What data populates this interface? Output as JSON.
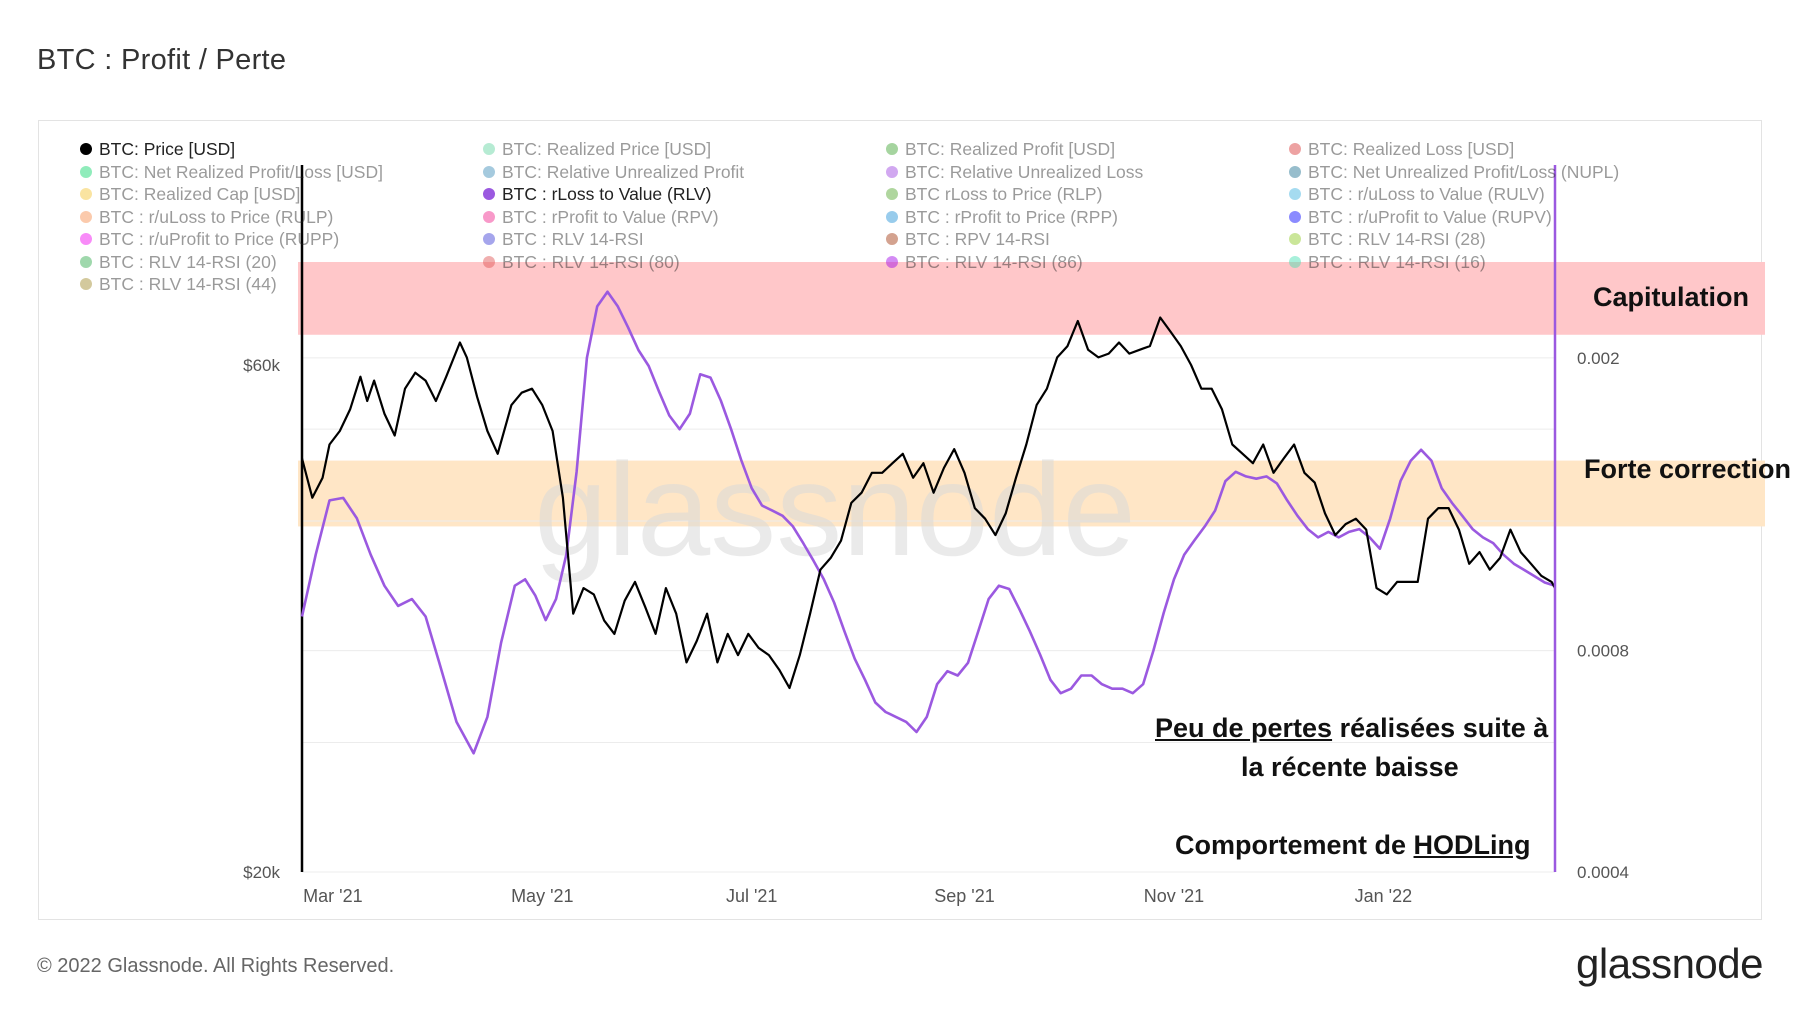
{
  "page": {
    "title": "BTC : Profit / Perte",
    "copyright": "© 2022 Glassnode. All Rights Reserved.",
    "logo_text": "glassnode",
    "watermark": "glassnode"
  },
  "colors": {
    "price_line": "#000000",
    "rlv_line": "#9b59e0",
    "capitulation_band": "#ffc7c9",
    "correction_band": "#ffe6c6",
    "grid": "#ececec",
    "axis_text": "#555555"
  },
  "legend": [
    {
      "label": "BTC: Price [USD]",
      "color": "#000000",
      "active": true
    },
    {
      "label": "BTC: Realized Price [USD]",
      "color": "#5fd3a0",
      "active": false
    },
    {
      "label": "BTC: Realized Profit [USD]",
      "color": "#3aa12c",
      "active": false
    },
    {
      "label": "BTC: Realized Loss [USD]",
      "color": "#d83232",
      "active": false
    },
    {
      "label": "BTC: Net Realized Profit/Loss [USD]",
      "color": "#0bd66b",
      "active": false
    },
    {
      "label": "BTC: Relative Unrealized Profit",
      "color": "#3a8bb8",
      "active": false
    },
    {
      "label": "BTC: Relative Unrealized Loss",
      "color": "#9b3fe0",
      "active": false
    },
    {
      "label": "BTC: Net Unrealized Profit/Loss (NUPL)",
      "color": "#1a6f8f",
      "active": false
    },
    {
      "label": "BTC: Realized Cap [USD]",
      "color": "#f4c430",
      "active": false
    },
    {
      "label": "BTC : rLoss to Value (RLV)",
      "color": "#9b59e0",
      "active": true
    },
    {
      "label": "BTC rLoss to Price (RLP)",
      "color": "#4fa52b",
      "active": false
    },
    {
      "label": "BTC : r/uLoss to Value (RULV)",
      "color": "#3ab0e0",
      "active": false
    },
    {
      "label": "BTC : r/uLoss to Price (RULP)",
      "color": "#f78b4a",
      "active": false
    },
    {
      "label": "BTC : rProfit to Value (RPV)",
      "color": "#f0208a",
      "active": false
    },
    {
      "label": "BTC : rProfit to Price (RPP)",
      "color": "#1d8fd6",
      "active": false
    },
    {
      "label": "BTC : r/uProfit to Value (RUPV)",
      "color": "#0000ff",
      "active": false
    },
    {
      "label": "BTC : r/uProfit to Price (RUPP)",
      "color": "#f000f0",
      "active": false
    },
    {
      "label": "BTC : RLV 14-RSI",
      "color": "#3a3ad6",
      "active": false
    },
    {
      "label": "BTC : RPV 14-RSI",
      "color": "#a0320a",
      "active": false
    },
    {
      "label": "BTC : RLV 14-RSI (28)",
      "color": "#8cc820",
      "active": false
    },
    {
      "label": "BTC : RLV 14-RSI (20)",
      "color": "#2caa4a",
      "active": false
    },
    {
      "label": "BTC : RLV 14-RSI (80)",
      "color": "#e05050",
      "active": false
    },
    {
      "label": "BTC : RLV 14-RSI (86)",
      "color": "#a000e8",
      "active": false
    },
    {
      "label": "BTC : RLV 14-RSI (16)",
      "color": "#40e0b0",
      "active": false
    },
    {
      "label": "BTC : RLV 14-RSI (44)",
      "color": "#a08a28",
      "active": false
    }
  ],
  "annotations": {
    "capitulation": "Capitulation",
    "correction": "Forte correction",
    "losses_part1": "Peu de pertes",
    "losses_part2": " réalisées suite à",
    "losses_line2": "la récente baisse",
    "hodl_part1": "Comportement de ",
    "hodl_part2": "HODLing"
  },
  "chart_data": {
    "type": "line",
    "x_ticks": [
      "Mar '21",
      "May '21",
      "Jul '21",
      "Sep '21",
      "Nov '21",
      "Jan '22"
    ],
    "x_tick_days": [
      9,
      70,
      131,
      193,
      254,
      315
    ],
    "x_range_days": [
      0,
      365
    ],
    "y_left": {
      "scale": "log",
      "range": [
        20000,
        75000
      ],
      "ticks": [
        "$60k",
        "$20k"
      ],
      "tick_values": [
        60000,
        20000
      ]
    },
    "y_right": {
      "scale": "log",
      "range": [
        0.0004,
        0.0027
      ],
      "ticks": [
        "0.002",
        "0.0008",
        "0.0004"
      ],
      "tick_values": [
        0.002,
        0.0008,
        0.0004
      ]
    },
    "bands": [
      {
        "name": "Capitulation",
        "axis": "right",
        "from": 0.00215,
        "to": 0.0027
      },
      {
        "name": "Forte correction",
        "axis": "right",
        "from": 0.00118,
        "to": 0.00145
      }
    ],
    "series": [
      {
        "name": "BTC: Price [USD]",
        "axis": "left",
        "points": [
          [
            0,
            49000
          ],
          [
            3,
            45000
          ],
          [
            6,
            47000
          ],
          [
            8,
            50500
          ],
          [
            11,
            52000
          ],
          [
            14,
            54500
          ],
          [
            17,
            58500
          ],
          [
            19,
            55500
          ],
          [
            21,
            58000
          ],
          [
            24,
            54000
          ],
          [
            27,
            51500
          ],
          [
            30,
            57000
          ],
          [
            33,
            59000
          ],
          [
            36,
            58000
          ],
          [
            39,
            55500
          ],
          [
            42,
            58500
          ],
          [
            46,
            63000
          ],
          [
            48,
            61000
          ],
          [
            51,
            56000
          ],
          [
            54,
            52000
          ],
          [
            57,
            49500
          ],
          [
            61,
            55000
          ],
          [
            64,
            56500
          ],
          [
            67,
            57000
          ],
          [
            70,
            55000
          ],
          [
            73,
            52000
          ],
          [
            76,
            45000
          ],
          [
            79,
            35000
          ],
          [
            82,
            37000
          ],
          [
            85,
            36500
          ],
          [
            88,
            34500
          ],
          [
            91,
            33500
          ],
          [
            94,
            36000
          ],
          [
            97,
            37500
          ],
          [
            100,
            35500
          ],
          [
            103,
            33500
          ],
          [
            106,
            37000
          ],
          [
            109,
            35000
          ],
          [
            112,
            31500
          ],
          [
            115,
            33000
          ],
          [
            118,
            35000
          ],
          [
            121,
            31500
          ],
          [
            124,
            33500
          ],
          [
            127,
            32000
          ],
          [
            130,
            33500
          ],
          [
            133,
            32500
          ],
          [
            136,
            32000
          ],
          [
            139,
            31000
          ],
          [
            142,
            29800
          ],
          [
            145,
            32000
          ],
          [
            148,
            35000
          ],
          [
            151,
            38500
          ],
          [
            154,
            39500
          ],
          [
            157,
            41000
          ],
          [
            160,
            44500
          ],
          [
            163,
            45500
          ],
          [
            166,
            47500
          ],
          [
            169,
            47500
          ],
          [
            172,
            48500
          ],
          [
            175,
            49500
          ],
          [
            178,
            47000
          ],
          [
            181,
            48500
          ],
          [
            184,
            45500
          ],
          [
            187,
            48000
          ],
          [
            190,
            50000
          ],
          [
            193,
            47500
          ],
          [
            196,
            44000
          ],
          [
            199,
            43000
          ],
          [
            202,
            41500
          ],
          [
            205,
            43500
          ],
          [
            208,
            47000
          ],
          [
            211,
            50500
          ],
          [
            214,
            55000
          ],
          [
            217,
            57000
          ],
          [
            220,
            61000
          ],
          [
            223,
            62500
          ],
          [
            226,
            66000
          ],
          [
            229,
            62000
          ],
          [
            232,
            61000
          ],
          [
            235,
            61500
          ],
          [
            238,
            63000
          ],
          [
            241,
            61500
          ],
          [
            244,
            62000
          ],
          [
            247,
            62500
          ],
          [
            250,
            66500
          ],
          [
            253,
            64500
          ],
          [
            256,
            62500
          ],
          [
            259,
            60000
          ],
          [
            262,
            57000
          ],
          [
            265,
            57000
          ],
          [
            268,
            54500
          ],
          [
            271,
            50500
          ],
          [
            274,
            49500
          ],
          [
            277,
            48500
          ],
          [
            280,
            50500
          ],
          [
            283,
            47500
          ],
          [
            286,
            49000
          ],
          [
            289,
            50500
          ],
          [
            292,
            47500
          ],
          [
            295,
            46500
          ],
          [
            298,
            43500
          ],
          [
            301,
            41500
          ],
          [
            304,
            42500
          ],
          [
            307,
            43000
          ],
          [
            310,
            42000
          ],
          [
            313,
            37000
          ],
          [
            316,
            36500
          ],
          [
            319,
            37500
          ],
          [
            322,
            37500
          ],
          [
            325,
            37500
          ],
          [
            328,
            43000
          ],
          [
            331,
            44000
          ],
          [
            334,
            44000
          ],
          [
            337,
            42000
          ],
          [
            340,
            39000
          ],
          [
            343,
            40000
          ],
          [
            346,
            38500
          ],
          [
            349,
            39500
          ],
          [
            352,
            42000
          ],
          [
            355,
            40000
          ],
          [
            358,
            39000
          ],
          [
            361,
            38000
          ],
          [
            364,
            37500
          ],
          [
            365,
            37000
          ]
        ]
      },
      {
        "name": "BTC : rLoss to Value (RLV)",
        "axis": "right",
        "points": [
          [
            0,
            0.00089
          ],
          [
            4,
            0.00108
          ],
          [
            8,
            0.00128
          ],
          [
            12,
            0.00129
          ],
          [
            16,
            0.00121
          ],
          [
            20,
            0.00108
          ],
          [
            24,
            0.00098
          ],
          [
            28,
            0.00092
          ],
          [
            32,
            0.00094
          ],
          [
            36,
            0.00089
          ],
          [
            40,
            0.00077
          ],
          [
            45,
            0.00064
          ],
          [
            50,
            0.00058
          ],
          [
            54,
            0.00065
          ],
          [
            58,
            0.00082
          ],
          [
            62,
            0.00098
          ],
          [
            65,
            0.001
          ],
          [
            68,
            0.00095
          ],
          [
            71,
            0.00088
          ],
          [
            74,
            0.00094
          ],
          [
            77,
            0.00108
          ],
          [
            80,
            0.0014
          ],
          [
            83,
            0.002
          ],
          [
            86,
            0.00235
          ],
          [
            89,
            0.00246
          ],
          [
            92,
            0.00235
          ],
          [
            95,
            0.0022
          ],
          [
            98,
            0.00205
          ],
          [
            101,
            0.00195
          ],
          [
            104,
            0.0018
          ],
          [
            107,
            0.00167
          ],
          [
            110,
            0.0016
          ],
          [
            113,
            0.00168
          ],
          [
            116,
            0.0019
          ],
          [
            119,
            0.00188
          ],
          [
            122,
            0.00175
          ],
          [
            125,
            0.0016
          ],
          [
            128,
            0.00145
          ],
          [
            131,
            0.00133
          ],
          [
            134,
            0.00126
          ],
          [
            137,
            0.00124
          ],
          [
            140,
            0.00122
          ],
          [
            143,
            0.00118
          ],
          [
            146,
            0.00112
          ],
          [
            149,
            0.00106
          ],
          [
            152,
            0.001
          ],
          [
            155,
            0.00093
          ],
          [
            158,
            0.00085
          ],
          [
            161,
            0.00078
          ],
          [
            164,
            0.00073
          ],
          [
            167,
            0.00068
          ],
          [
            170,
            0.00066
          ],
          [
            173,
            0.00065
          ],
          [
            176,
            0.00064
          ],
          [
            179,
            0.00062
          ],
          [
            182,
            0.00065
          ],
          [
            185,
            0.00072
          ],
          [
            188,
            0.00075
          ],
          [
            191,
            0.00074
          ],
          [
            194,
            0.00077
          ],
          [
            197,
            0.00085
          ],
          [
            200,
            0.00094
          ],
          [
            203,
            0.00098
          ],
          [
            206,
            0.00097
          ],
          [
            209,
            0.00091
          ],
          [
            212,
            0.00085
          ],
          [
            215,
            0.00079
          ],
          [
            218,
            0.00073
          ],
          [
            221,
            0.0007
          ],
          [
            224,
            0.00071
          ],
          [
            227,
            0.00074
          ],
          [
            230,
            0.00074
          ],
          [
            233,
            0.00072
          ],
          [
            236,
            0.00071
          ],
          [
            239,
            0.00071
          ],
          [
            242,
            0.0007
          ],
          [
            245,
            0.00072
          ],
          [
            248,
            0.0008
          ],
          [
            251,
            0.0009
          ],
          [
            254,
            0.001
          ],
          [
            257,
            0.00108
          ],
          [
            260,
            0.00113
          ],
          [
            263,
            0.00118
          ],
          [
            266,
            0.00124
          ],
          [
            269,
            0.00136
          ],
          [
            272,
            0.0014
          ],
          [
            275,
            0.00138
          ],
          [
            278,
            0.00137
          ],
          [
            281,
            0.00138
          ],
          [
            284,
            0.00135
          ],
          [
            287,
            0.00128
          ],
          [
            290,
            0.00122
          ],
          [
            293,
            0.00117
          ],
          [
            296,
            0.00114
          ],
          [
            299,
            0.00116
          ],
          [
            302,
            0.00114
          ],
          [
            305,
            0.00116
          ],
          [
            308,
            0.00117
          ],
          [
            311,
            0.00114
          ],
          [
            314,
            0.0011
          ],
          [
            317,
            0.00121
          ],
          [
            320,
            0.00136
          ],
          [
            323,
            0.00145
          ],
          [
            326,
            0.0015
          ],
          [
            329,
            0.00145
          ],
          [
            332,
            0.00133
          ],
          [
            335,
            0.00127
          ],
          [
            338,
            0.00122
          ],
          [
            341,
            0.00117
          ],
          [
            344,
            0.00114
          ],
          [
            347,
            0.00112
          ],
          [
            350,
            0.00108
          ],
          [
            353,
            0.00105
          ],
          [
            356,
            0.00103
          ],
          [
            359,
            0.00101
          ],
          [
            362,
            0.00099
          ],
          [
            365,
            0.00098
          ]
        ]
      }
    ]
  }
}
